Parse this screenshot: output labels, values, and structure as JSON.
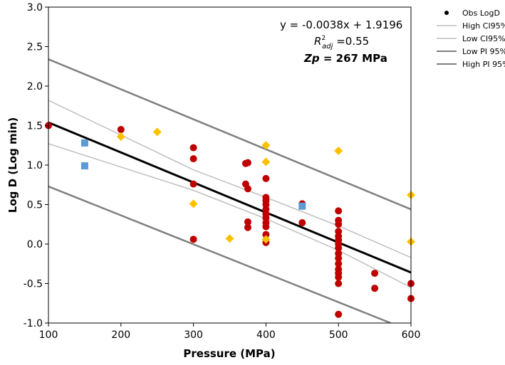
{
  "chart_data": {
    "type": "scatter",
    "xlabel": "Pressure (MPa)",
    "ylabel": "Log D (Log min)",
    "xlim": [
      100,
      600
    ],
    "ylim": [
      -1.0,
      3.0
    ],
    "x_ticks": [
      "100",
      "200",
      "300",
      "400",
      "500",
      "600"
    ],
    "y_ticks": [
      "-1.0",
      "-0.5",
      "0.0",
      "0.5",
      "1.0",
      "1.5",
      "2.0",
      "2.5",
      "3.0"
    ],
    "grid": false,
    "legend_position": "right",
    "annotations": {
      "equation": "y = -0.0038x + 1.9196",
      "r2_symbol": "R",
      "r2_sup": "2",
      "r2_sub": "adj",
      "r2_value": " =0.55",
      "zp_label": "Zp",
      "zp_value": " = 267 MPa"
    },
    "legend": [
      {
        "key": "obs",
        "label": "Obs LogD",
        "marker": "dot",
        "color": "#000000"
      },
      {
        "key": "high_ci",
        "label": "High CI95%",
        "marker": "line",
        "color": "#bfbfbf"
      },
      {
        "key": "low_ci",
        "label": "Low CI95%",
        "marker": "line",
        "color": "#bfbfbf"
      },
      {
        "key": "low_pi",
        "label": "Low PI 95%",
        "marker": "line",
        "color": "#7f7f7f"
      },
      {
        "key": "high_pi",
        "label": "High PI 95%",
        "marker": "line",
        "color": "#7f7f7f"
      }
    ],
    "lines": {
      "fit": {
        "color": "#000000",
        "width": 3,
        "points": [
          [
            100,
            1.54
          ],
          [
            600,
            -0.36
          ]
        ]
      },
      "high_ci": {
        "color": "#bfbfbf",
        "width": 1.5,
        "points": [
          [
            100,
            1.82
          ],
          [
            300,
            0.94
          ],
          [
            400,
            0.59
          ],
          [
            500,
            0.23
          ],
          [
            600,
            -0.17
          ]
        ]
      },
      "low_ci": {
        "color": "#bfbfbf",
        "width": 1.5,
        "points": [
          [
            100,
            1.27
          ],
          [
            300,
            0.68
          ],
          [
            400,
            0.32
          ],
          [
            500,
            -0.08
          ],
          [
            600,
            -0.55
          ]
        ]
      },
      "high_pi": {
        "color": "#7f7f7f",
        "width": 2.5,
        "points": [
          [
            100,
            2.34
          ],
          [
            600,
            0.44
          ]
        ]
      },
      "low_pi": {
        "color": "#7f7f7f",
        "width": 2.5,
        "points": [
          [
            100,
            0.73
          ],
          [
            572,
            -1.0
          ]
        ]
      }
    },
    "series": [
      {
        "marker": "circle",
        "color": "#c00000",
        "points": [
          [
            100,
            1.5
          ],
          [
            200,
            1.45
          ],
          [
            300,
            1.22
          ],
          [
            300,
            1.08
          ],
          [
            300,
            0.76
          ],
          [
            300,
            0.06
          ],
          [
            372,
            1.02
          ],
          [
            375,
            1.03
          ],
          [
            372,
            0.76
          ],
          [
            375,
            0.7
          ],
          [
            375,
            0.28
          ],
          [
            375,
            0.21
          ],
          [
            400,
            0.83
          ],
          [
            400,
            0.59
          ],
          [
            400,
            0.55
          ],
          [
            400,
            0.5
          ],
          [
            400,
            0.44
          ],
          [
            400,
            0.38
          ],
          [
            400,
            0.33
          ],
          [
            400,
            0.27
          ],
          [
            400,
            0.22
          ],
          [
            400,
            0.12
          ],
          [
            400,
            0.02
          ],
          [
            450,
            0.51
          ],
          [
            450,
            0.27
          ],
          [
            500,
            0.42
          ],
          [
            500,
            0.3
          ],
          [
            500,
            0.25
          ],
          [
            500,
            0.16
          ],
          [
            500,
            0.1
          ],
          [
            500,
            0.05
          ],
          [
            500,
            0.0
          ],
          [
            500,
            -0.05
          ],
          [
            500,
            -0.12
          ],
          [
            500,
            -0.18
          ],
          [
            500,
            -0.25
          ],
          [
            500,
            -0.32
          ],
          [
            500,
            -0.37
          ],
          [
            500,
            -0.42
          ],
          [
            500,
            -0.5
          ],
          [
            500,
            -0.89
          ],
          [
            550,
            -0.37
          ],
          [
            550,
            -0.56
          ],
          [
            600,
            -0.5
          ],
          [
            600,
            -0.69
          ]
        ]
      },
      {
        "marker": "diamond",
        "color": "#ffc000",
        "points": [
          [
            200,
            1.36
          ],
          [
            250,
            1.42
          ],
          [
            300,
            0.51
          ],
          [
            350,
            0.07
          ],
          [
            400,
            1.25
          ],
          [
            400,
            1.04
          ],
          [
            400,
            0.06
          ],
          [
            500,
            1.18
          ],
          [
            600,
            0.62
          ],
          [
            600,
            0.03
          ]
        ]
      },
      {
        "marker": "square",
        "color": "#5b9bd5",
        "points": [
          [
            150,
            1.28
          ],
          [
            150,
            0.99
          ],
          [
            450,
            0.48
          ]
        ]
      }
    ]
  }
}
